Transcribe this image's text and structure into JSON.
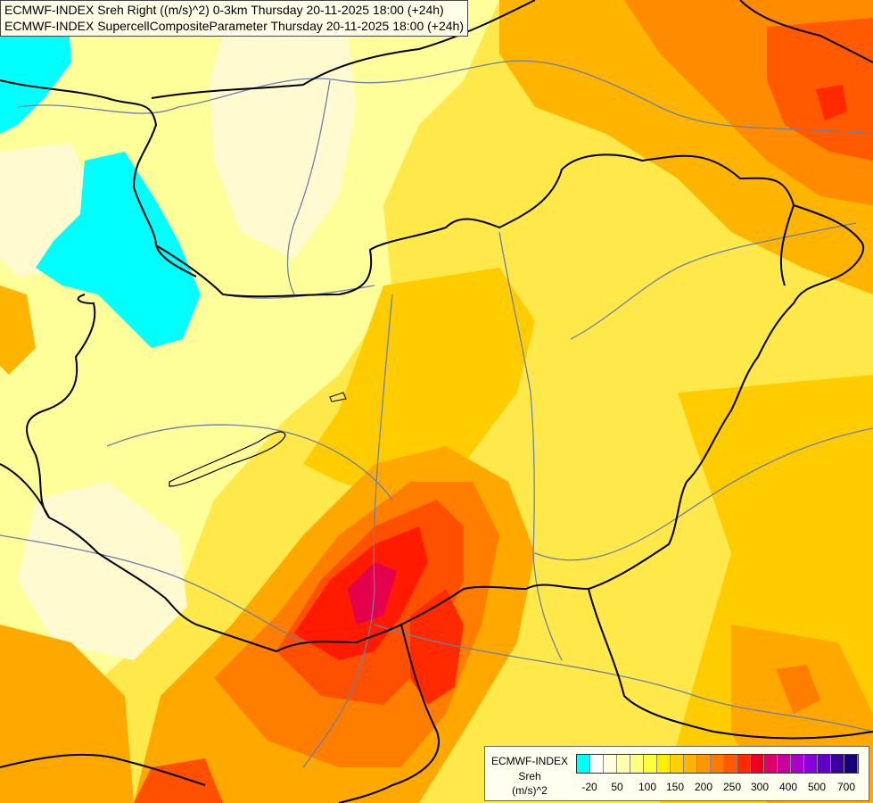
{
  "title": {
    "line1": "ECMWF-INDEX Sreh Right ((m/s)^2) 0-3km Thursday 20-11-2025 18:00 (+24h)",
    "line2": "ECMWF-INDEX SupercellCompositeParameter Thursday 20-11-2025 18:00 (+24h)"
  },
  "legend": {
    "title": "ECMWF-INDEX",
    "variable": "Sreh",
    "unit": "(m/s)^2",
    "colors": [
      "#00ffff",
      "#ffffff",
      "#ffffe0",
      "#ffffb0",
      "#ffff80",
      "#ffff40",
      "#ffee00",
      "#ffd000",
      "#ffb400",
      "#ff9800",
      "#ff7a00",
      "#ff5a00",
      "#ff2a00",
      "#ee0022",
      "#dd0066",
      "#c800a0",
      "#aa00cc",
      "#8800dd",
      "#6000c8",
      "#3a009e",
      "#14007a"
    ],
    "ticks": [
      "-20",
      "50",
      "100",
      "150",
      "200",
      "250",
      "300",
      "400",
      "500",
      "700"
    ]
  },
  "colors": {
    "cyan": "#00ffff",
    "pale": "#fffad0",
    "light_yellow": "#ffff99",
    "yellow": "#fff000",
    "gold": "#ffcc00",
    "orange": "#ffa800",
    "dark_orange": "#ff7e00",
    "red_orange": "#ff5000",
    "red": "#ff1a00",
    "crimson": "#e4004a",
    "border_line": "#000000",
    "river_line": "#6d7fa8"
  }
}
